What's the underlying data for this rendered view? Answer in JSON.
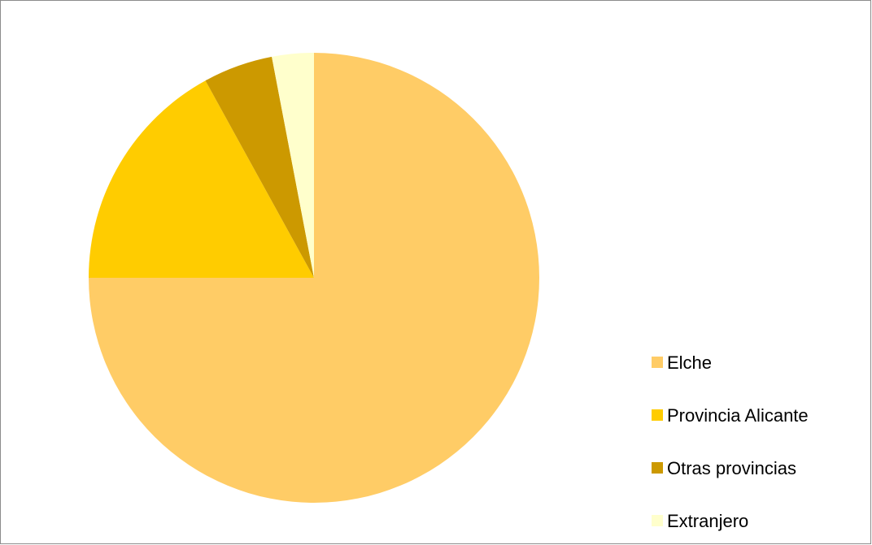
{
  "chart_data": {
    "type": "pie",
    "title": "",
    "categories": [
      "Elche",
      "Provincia Alicante",
      "Otras provincias",
      "Extranjero"
    ],
    "values": [
      75,
      17,
      5,
      3
    ],
    "colors": [
      "#FFCC66",
      "#FFCC00",
      "#CC9900",
      "#FFFFCC"
    ],
    "start_angle_deg": 0,
    "direction": "clockwise-from-top",
    "legend": {
      "position": "right-bottom",
      "entries": [
        "Elche",
        "Provincia Alicante",
        "Otras provincias",
        "Extranjero"
      ]
    }
  }
}
